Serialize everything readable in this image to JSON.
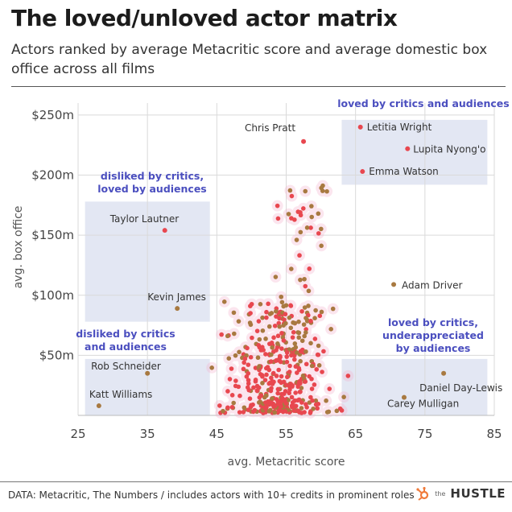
{
  "header": {
    "title": "The loved/unloved actor matrix",
    "subtitle": "Actors ranked by average Metacritic score and average domestic box office across all films"
  },
  "footer": {
    "source": "DATA: Metacritic, The Numbers / includes actors with 10+ credits in prominent roles",
    "logo_small": "the",
    "logo_big": "HUSTLE"
  },
  "colors": {
    "point_red": "#e8474f",
    "point_brown": "#a87940",
    "zone_fill": "#e3e7f3",
    "halo": "#f4b6cf",
    "annotation": "#4b4fbf"
  },
  "chart_data": {
    "type": "scatter",
    "xlabel": "avg. Metacritic score",
    "ylabel": "avg. box office",
    "xlim": [
      25,
      85
    ],
    "ylim": [
      0,
      260
    ],
    "xticks": [
      25,
      35,
      45,
      55,
      65,
      75,
      85
    ],
    "yticks": [
      50,
      100,
      150,
      200,
      250
    ],
    "ytick_labels": [
      "$50m",
      "$100m",
      "$150m",
      "$200m",
      "$250m"
    ],
    "zones": [
      {
        "label": "loved by critics and audiences",
        "x": [
          63,
          84
        ],
        "y": [
          192,
          246
        ]
      },
      {
        "label": "disliked by critics, loved by audiences",
        "x": [
          26,
          44
        ],
        "y": [
          78,
          178
        ]
      },
      {
        "label": "disliked by critics and audiences",
        "x": [
          26,
          44
        ],
        "y": [
          0,
          47
        ]
      },
      {
        "label": "loved by critics, underappreciated by audiences",
        "x": [
          63,
          84
        ],
        "y": [
          0,
          47
        ]
      }
    ],
    "labeled_points": [
      {
        "name": "Chris Pratt",
        "x": 57.5,
        "y": 228,
        "color": "red"
      },
      {
        "name": "Letitia Wright",
        "x": 65.7,
        "y": 240,
        "color": "red"
      },
      {
        "name": "Lupita Nyong'o",
        "x": 72.5,
        "y": 222,
        "color": "red"
      },
      {
        "name": "Emma Watson",
        "x": 66.0,
        "y": 203,
        "color": "red"
      },
      {
        "name": "Taylor Lautner",
        "x": 37.5,
        "y": 154,
        "color": "red"
      },
      {
        "name": "Adam Driver",
        "x": 70.5,
        "y": 109,
        "color": "brown"
      },
      {
        "name": "Kevin James",
        "x": 39.3,
        "y": 89,
        "color": "brown"
      },
      {
        "name": "Rob Schneider",
        "x": 35.0,
        "y": 35,
        "color": "brown"
      },
      {
        "name": "Katt Williams",
        "x": 28.0,
        "y": 8,
        "color": "brown"
      },
      {
        "name": "Daniel Day-Lewis",
        "x": 77.7,
        "y": 35,
        "color": "brown"
      },
      {
        "name": "Carey Mulligan",
        "x": 72.0,
        "y": 15,
        "color": "brown"
      }
    ]
  }
}
